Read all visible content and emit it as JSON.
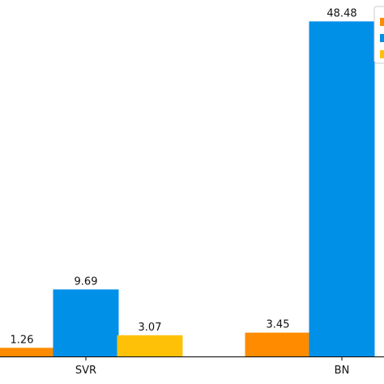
{
  "chart_data": {
    "type": "bar",
    "categories": [
      "SVR",
      "BN"
    ],
    "series": [
      {
        "color": "#ff8c00",
        "values": [
          1.26,
          3.45
        ]
      },
      {
        "color": "#0090e8",
        "values": [
          9.69,
          48.48
        ]
      },
      {
        "color": "#ffc107",
        "values": [
          3.07,
          null
        ]
      }
    ],
    "data_labels": [
      [
        "1.26",
        "3.45"
      ],
      [
        "9.69",
        "48.48"
      ],
      [
        "3.07",
        ""
      ]
    ],
    "ylim": [
      0,
      50.4
    ],
    "grid": false,
    "legend": {
      "placement": "top-right",
      "entries": [
        "",
        "",
        ""
      ]
    }
  }
}
